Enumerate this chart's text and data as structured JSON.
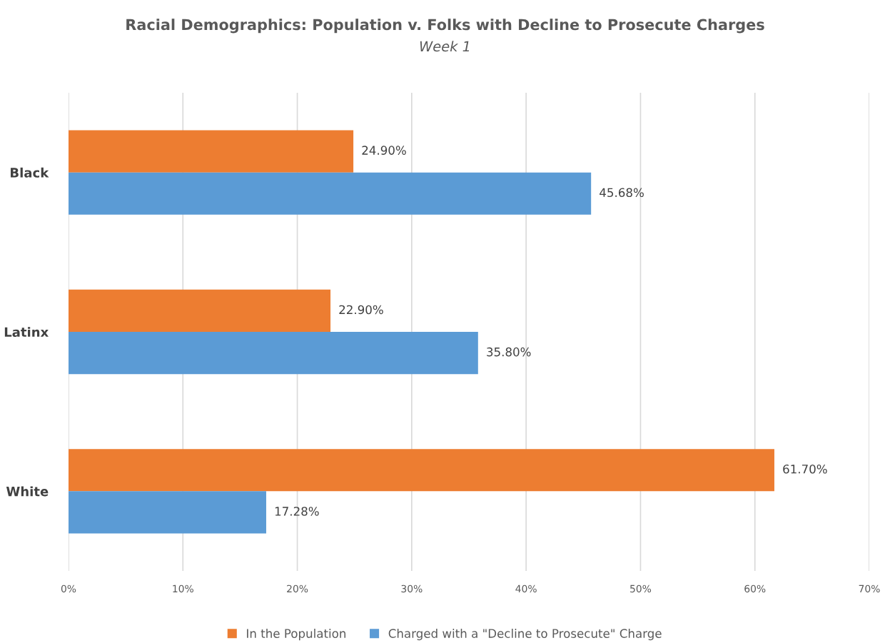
{
  "chart_data": {
    "type": "bar",
    "orientation": "horizontal",
    "title": "Racial Demographics: Population v. Folks with Decline to Prosecute Charges",
    "subtitle": "Week 1",
    "categories": [
      "Black",
      "Latinx",
      "White"
    ],
    "series": [
      {
        "name": "In the Population",
        "color": "#ed7d31",
        "values": [
          24.9,
          22.9,
          61.7
        ],
        "value_labels": [
          "24.90%",
          "22.90%",
          "61.70%"
        ]
      },
      {
        "name": "Charged with a \"Decline to Prosecute\" Charge",
        "color": "#5b9bd5",
        "values": [
          45.68,
          35.8,
          17.28
        ],
        "value_labels": [
          "45.68%",
          "35.80%",
          "17.28%"
        ]
      }
    ],
    "xlim": [
      0,
      70
    ],
    "xticks": [
      {
        "value": 0,
        "label": "0%"
      },
      {
        "value": 10,
        "label": "10%"
      },
      {
        "value": 20,
        "label": "20%"
      },
      {
        "value": 30,
        "label": "30%"
      },
      {
        "value": 40,
        "label": "40%"
      },
      {
        "value": 50,
        "label": "50%"
      },
      {
        "value": 60,
        "label": "60%"
      },
      {
        "value": 70,
        "label": "70%"
      }
    ],
    "grid": "x",
    "legend": "bottom"
  }
}
